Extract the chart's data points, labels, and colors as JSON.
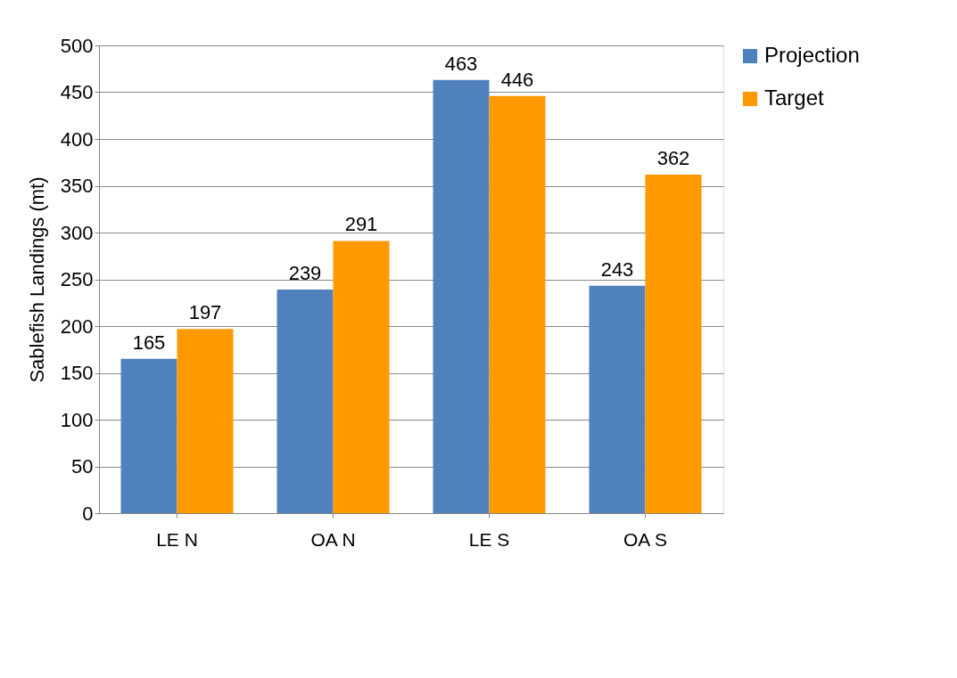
{
  "chart_data": {
    "type": "bar",
    "ylabel": "Sablefish Landings (mt)",
    "categories": [
      "LE N",
      "OA N",
      "LE S",
      "OA S"
    ],
    "series": [
      {
        "name": "Projection",
        "color": "#4f81bd",
        "values": [
          165,
          239,
          463,
          243
        ]
      },
      {
        "name": "Target",
        "color": "#ff9900",
        "values": [
          197,
          291,
          446,
          362
        ]
      }
    ],
    "ylim": [
      0,
      500
    ],
    "yticks": [
      0,
      50,
      100,
      150,
      200,
      250,
      300,
      350,
      400,
      450,
      500
    ],
    "grid": "y",
    "legend": "top right",
    "data_labels": true
  }
}
